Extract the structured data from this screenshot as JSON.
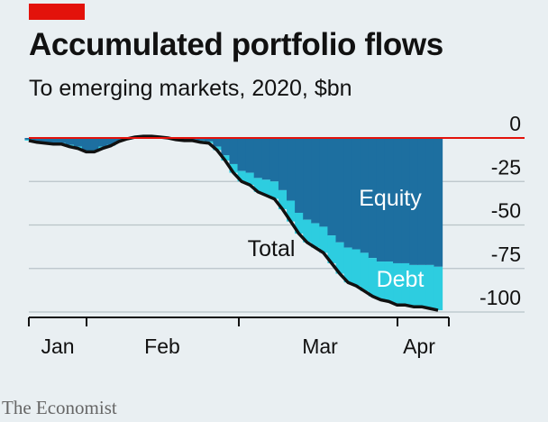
{
  "header": {
    "title": "Accumulated portfolio flows",
    "subtitle": "To emerging markets, 2020, $bn"
  },
  "source": "The Economist",
  "colors": {
    "background": "#e9eff2",
    "brand_tag": "#e3120b",
    "equity": "#1d6fa0",
    "debt": "#2dcde0",
    "total_line": "#111111",
    "zero_line": "#e3120b",
    "grid": "#b9c3c8"
  },
  "chart_data": {
    "type": "area",
    "title": "Accumulated portfolio flows",
    "subtitle": "To emerging markets, 2020, $bn",
    "xlabel": "",
    "ylabel": "",
    "x_ticks": [
      "Jan",
      "Feb",
      "Mar",
      "Apr"
    ],
    "ylim": [
      -105,
      5
    ],
    "y_ticks": [
      0,
      -25,
      -50,
      -75,
      -100
    ],
    "y_tick_labels": [
      "0",
      "-25",
      "-50",
      "-75",
      "-100"
    ],
    "grid": true,
    "annotations": [
      {
        "text": "Equity"
      },
      {
        "text": "Debt"
      },
      {
        "text": "Total"
      }
    ],
    "series": [
      {
        "name": "Equity",
        "values": [
          -1,
          -2,
          -2.5,
          -3,
          -3,
          -4,
          -5,
          -7,
          -7,
          -5,
          -4,
          -2,
          -1,
          -0.5,
          -0.5,
          -0.5,
          -0.5,
          -0.5,
          -1,
          -1,
          -1,
          -1.5,
          -2,
          -5,
          -10,
          -15,
          -19,
          -20,
          -23,
          -24,
          -25,
          -30,
          -36,
          -43,
          -47,
          -49,
          -51,
          -56,
          -60,
          -63,
          -64,
          -66,
          -69,
          -71,
          -71,
          -72,
          -72,
          -73,
          -73,
          -73,
          -74
        ]
      },
      {
        "name": "Debt",
        "values": [
          -0.5,
          -0.5,
          -0.5,
          -0.5,
          -0.5,
          -1,
          -1,
          -1,
          -1,
          -1,
          -0.5,
          0,
          0.5,
          1,
          1.5,
          1.5,
          1,
          0.5,
          0,
          -0.5,
          -0.5,
          -1,
          -1,
          -2,
          -3,
          -5,
          -6,
          -7,
          -8,
          -9,
          -10,
          -11,
          -12,
          -12,
          -13,
          -14,
          -15,
          -16,
          -18,
          -20,
          -21,
          -22,
          -22,
          -22,
          -23,
          -24,
          -24,
          -24,
          -24,
          -25,
          -25
        ]
      },
      {
        "name": "Total",
        "values": [
          -1.5,
          -2.5,
          -3,
          -3.5,
          -3.5,
          -5,
          -6,
          -8,
          -8,
          -6,
          -4.5,
          -2,
          -0.5,
          0.5,
          1,
          1,
          0.5,
          0,
          -1,
          -1.5,
          -1.5,
          -2.5,
          -3,
          -7,
          -13,
          -20,
          -25,
          -27,
          -31,
          -33,
          -35,
          -41,
          -48,
          -55,
          -60,
          -63,
          -66,
          -72,
          -78,
          -83,
          -85,
          -88,
          -91,
          -93,
          -94,
          -96,
          -96,
          -97,
          -97,
          -98,
          -99
        ]
      }
    ]
  }
}
